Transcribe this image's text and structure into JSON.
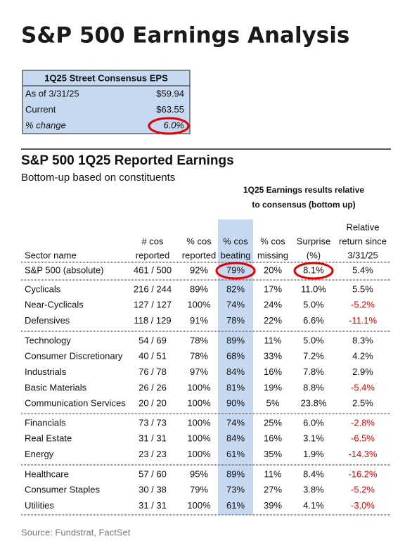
{
  "title": "S&P 500 Earnings Analysis",
  "eps_box": {
    "header": "1Q25 Street Consensus EPS",
    "rows": [
      [
        "As of 3/31/25",
        "$59.94"
      ],
      [
        "Current",
        "$63.55"
      ],
      [
        "% change",
        "6.0%"
      ]
    ]
  },
  "section": {
    "title": "S&P 500 1Q25 Reported Earnings",
    "subtitle": "Bottom-up based on constituents"
  },
  "table": {
    "group_header": [
      "1Q25 Earnings results relative",
      "to consensus (bottom up)"
    ],
    "columns": [
      [
        "Sector name"
      ],
      [
        "# cos",
        "reported"
      ],
      [
        "% cos",
        "reported"
      ],
      [
        "% cos",
        "beating"
      ],
      [
        "% cos",
        "missing"
      ],
      [
        "Surprise",
        "(%)"
      ],
      [
        "Relative",
        "return since",
        "3/31/25"
      ]
    ],
    "total": [
      "S&P 500 (absolute)",
      "461 / 500",
      "92%",
      "79%",
      "20%",
      "8.1%",
      "5.4%"
    ],
    "groups": [
      [
        [
          "Cyclicals",
          "216 / 244",
          "89%",
          "82%",
          "17%",
          "11.0%",
          "5.5%"
        ],
        [
          "Near-Cyclicals",
          "127 / 127",
          "100%",
          "74%",
          "24%",
          "5.0%",
          "-5.2%"
        ],
        [
          "Defensives",
          "118 / 129",
          "91%",
          "78%",
          "22%",
          "6.6%",
          "-11.1%"
        ]
      ],
      [
        [
          "Technology",
          "54 / 69",
          "78%",
          "89%",
          "11%",
          "5.0%",
          "8.3%"
        ],
        [
          "Consumer Discretionary",
          "40 / 51",
          "78%",
          "68%",
          "33%",
          "7.2%",
          "4.2%"
        ],
        [
          "Industrials",
          "76 / 78",
          "97%",
          "84%",
          "16%",
          "7.8%",
          "2.9%"
        ],
        [
          "Basic Materials",
          "26 / 26",
          "100%",
          "81%",
          "19%",
          "8.8%",
          "-5.4%"
        ],
        [
          "Communication Services",
          "20 / 20",
          "100%",
          "90%",
          "5%",
          "23.8%",
          "2.5%"
        ]
      ],
      [
        [
          "Financials",
          "73 / 73",
          "100%",
          "74%",
          "25%",
          "6.0%",
          "-2.8%"
        ],
        [
          "Real Estate",
          "31 / 31",
          "100%",
          "84%",
          "16%",
          "3.1%",
          "-6.5%"
        ],
        [
          "Energy",
          "23 / 23",
          "100%",
          "61%",
          "35%",
          "1.9%",
          "-14.3%"
        ]
      ],
      [
        [
          "Healthcare",
          "57 / 60",
          "95%",
          "89%",
          "11%",
          "8.4%",
          "-16.2%"
        ],
        [
          "Consumer Staples",
          "30 / 38",
          "79%",
          "73%",
          "27%",
          "3.8%",
          "-5.2%"
        ],
        [
          "Utilities",
          "31 / 31",
          "100%",
          "61%",
          "39%",
          "4.1%",
          "-3.0%"
        ]
      ]
    ]
  },
  "source": "Source: Fundstrat, FactSet"
}
